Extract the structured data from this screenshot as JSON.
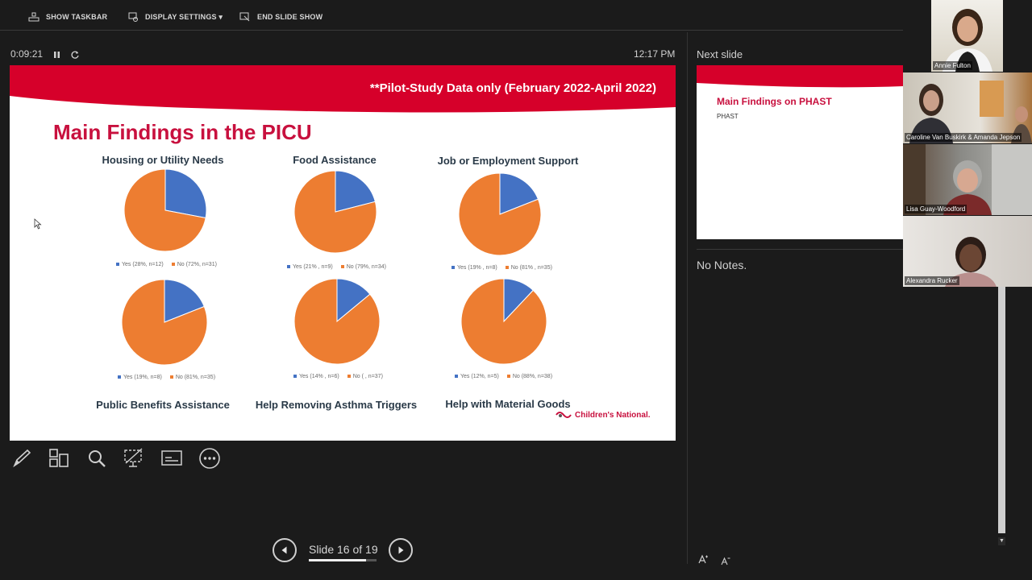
{
  "toolbar": {
    "show_taskbar": "SHOW TASKBAR",
    "display_settings": "DISPLAY SETTINGS ▾",
    "end_slide_show": "END SLIDE SHOW"
  },
  "presenter": {
    "timer": "0:09:21",
    "clock": "12:17 PM",
    "next_slide_label": "Next slide",
    "notes": "No Notes.",
    "slide_counter": "Slide 16 of 19",
    "slide_progress": 0.84
  },
  "slide": {
    "banner_text": "**Pilot-Study Data only (February 2022-April 2022)",
    "title": "Main Findings in the PICU",
    "logo_text": "Children's National.",
    "colors": {
      "banner": "#d6002a",
      "title": "#c8103e",
      "yes": "#4472c4",
      "no": "#ed7d31"
    },
    "charts": [
      {
        "title": "Housing or Utility Needs",
        "yes_label": "Yes (28%, n=12)",
        "no_label": "No (72%, n=31)",
        "yes_pct": 28
      },
      {
        "title": "Food Assistance",
        "yes_label": "Yes (21% , n=9)",
        "no_label": "No (79%, n=34)",
        "yes_pct": 21
      },
      {
        "title": "Job or Employment Support",
        "yes_label": "Yes (19% , n=8)",
        "no_label": "No (81% , n=35)",
        "yes_pct": 19
      },
      {
        "title": "Public Benefits Assistance",
        "yes_label": "Yes (19%, n=8)",
        "no_label": "No (81%, n=35)",
        "yes_pct": 19
      },
      {
        "title": "Help Removing Asthma Triggers",
        "yes_label": "Yes (14% , n=6)",
        "no_label": "No ( , n=37)",
        "yes_pct": 14
      },
      {
        "title": "Help with Material Goods",
        "yes_label": "Yes (12%, n=5)",
        "no_label": "No (88%, n=38)",
        "yes_pct": 12
      }
    ]
  },
  "next_slide": {
    "title": "Main Findings on PHAST",
    "subtitle": "PHAST"
  },
  "participants": [
    {
      "name": "Annie Fulton"
    },
    {
      "name": "Caroline Van Buskirk & Amanda Jepson"
    },
    {
      "name": "Lisa Guay-Woodford"
    },
    {
      "name": "Alexandra Rucker"
    }
  ],
  "chart_data": [
    {
      "type": "pie",
      "title": "Housing or Utility Needs",
      "categories": [
        "Yes",
        "No"
      ],
      "values": [
        28,
        72
      ],
      "counts": [
        12,
        31
      ]
    },
    {
      "type": "pie",
      "title": "Food Assistance",
      "categories": [
        "Yes",
        "No"
      ],
      "values": [
        21,
        79
      ],
      "counts": [
        9,
        34
      ]
    },
    {
      "type": "pie",
      "title": "Job or Employment Support",
      "categories": [
        "Yes",
        "No"
      ],
      "values": [
        19,
        81
      ],
      "counts": [
        8,
        35
      ]
    },
    {
      "type": "pie",
      "title": "Public Benefits Assistance",
      "categories": [
        "Yes",
        "No"
      ],
      "values": [
        19,
        81
      ],
      "counts": [
        8,
        35
      ]
    },
    {
      "type": "pie",
      "title": "Help Removing Asthma Triggers",
      "categories": [
        "Yes",
        "No"
      ],
      "values": [
        14,
        86
      ],
      "counts": [
        6,
        37
      ]
    },
    {
      "type": "pie",
      "title": "Help with Material Goods",
      "categories": [
        "Yes",
        "No"
      ],
      "values": [
        12,
        88
      ],
      "counts": [
        5,
        38
      ]
    }
  ]
}
